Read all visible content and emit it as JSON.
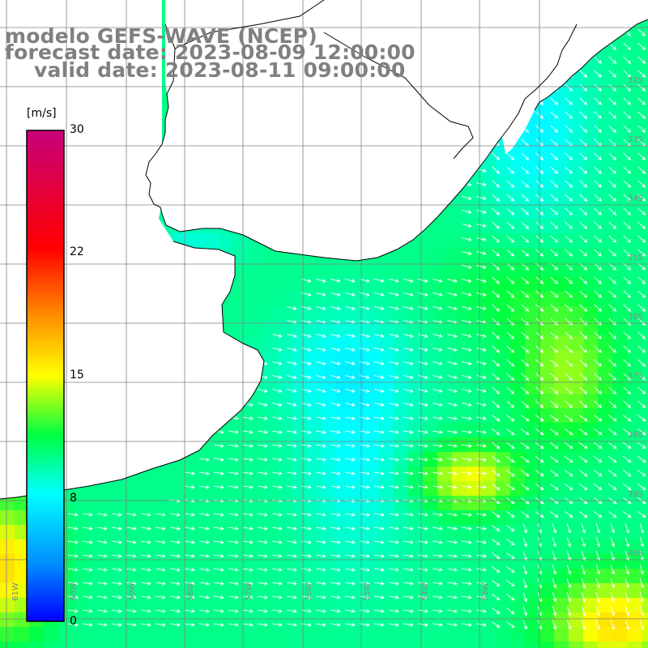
{
  "title": {
    "line1": "modelo GEFS-WAVE (NCEP)",
    "line2": "forecast date: 2023-08-09 12:00:00",
    "line3": "valid date: 2023-08-11 09:00:00"
  },
  "colorbar": {
    "unit": "[m/s]",
    "ticks": [
      "30",
      "22",
      "15",
      "8",
      "0"
    ],
    "min": 0,
    "max": 30,
    "stops": [
      "#0000ff",
      "#00a0ff",
      "#00ffff",
      "#00ff00",
      "#ffff00",
      "#ff8000",
      "#ff0000",
      "#c80078"
    ]
  },
  "grid": {
    "lat_labels": [
      "32S",
      "33S",
      "34S",
      "35S",
      "36S",
      "37S",
      "38S",
      "39S",
      "40S"
    ],
    "lon_labels": [
      "61W",
      "60W",
      "59W",
      "58W",
      "57W",
      "56W",
      "55W",
      "54W",
      "53W"
    ]
  },
  "colors": {
    "land": "#ffffff",
    "coast": "#000000",
    "gridline": "#808080",
    "arrow": "#ffffff",
    "title": "#808080"
  }
}
